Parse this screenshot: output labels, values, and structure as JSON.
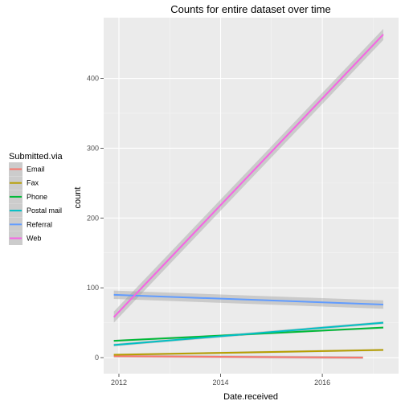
{
  "chart_data": {
    "type": "line",
    "title": "Counts for entire dataset over time",
    "xlabel": "Date.received",
    "ylabel": "count",
    "x_ticks": [
      "2012",
      "2014",
      "2016"
    ],
    "y_ticks": [
      "0",
      "100",
      "200",
      "300",
      "400"
    ],
    "xlim": [
      2011.7,
      2017.5
    ],
    "ylim": [
      -23,
      487
    ],
    "grid": true,
    "confidence_band": true,
    "legend": {
      "title": "Submitted.via",
      "position": "left"
    },
    "series": [
      {
        "name": "Email",
        "color": "#F8766D",
        "x": [
          2011.9,
          2016.8
        ],
        "y": [
          2,
          0
        ],
        "band": 2
      },
      {
        "name": "Fax",
        "color": "#B79F00",
        "x": [
          2011.9,
          2017.2
        ],
        "y": [
          4,
          11
        ],
        "band": 1.5
      },
      {
        "name": "Phone",
        "color": "#00BA38",
        "x": [
          2011.9,
          2017.2
        ],
        "y": [
          24,
          43
        ],
        "band": 1.5
      },
      {
        "name": "Postal mail",
        "color": "#00BFC4",
        "x": [
          2011.9,
          2017.2
        ],
        "y": [
          18,
          50
        ],
        "band": 2
      },
      {
        "name": "Referral",
        "color": "#619CFF",
        "x": [
          2011.9,
          2017.2
        ],
        "y": [
          90,
          76
        ],
        "band": 6
      },
      {
        "name": "Web",
        "color": "#F564E3",
        "x": [
          2011.9,
          2017.2
        ],
        "y": [
          58,
          463
        ],
        "band": 8
      }
    ]
  }
}
